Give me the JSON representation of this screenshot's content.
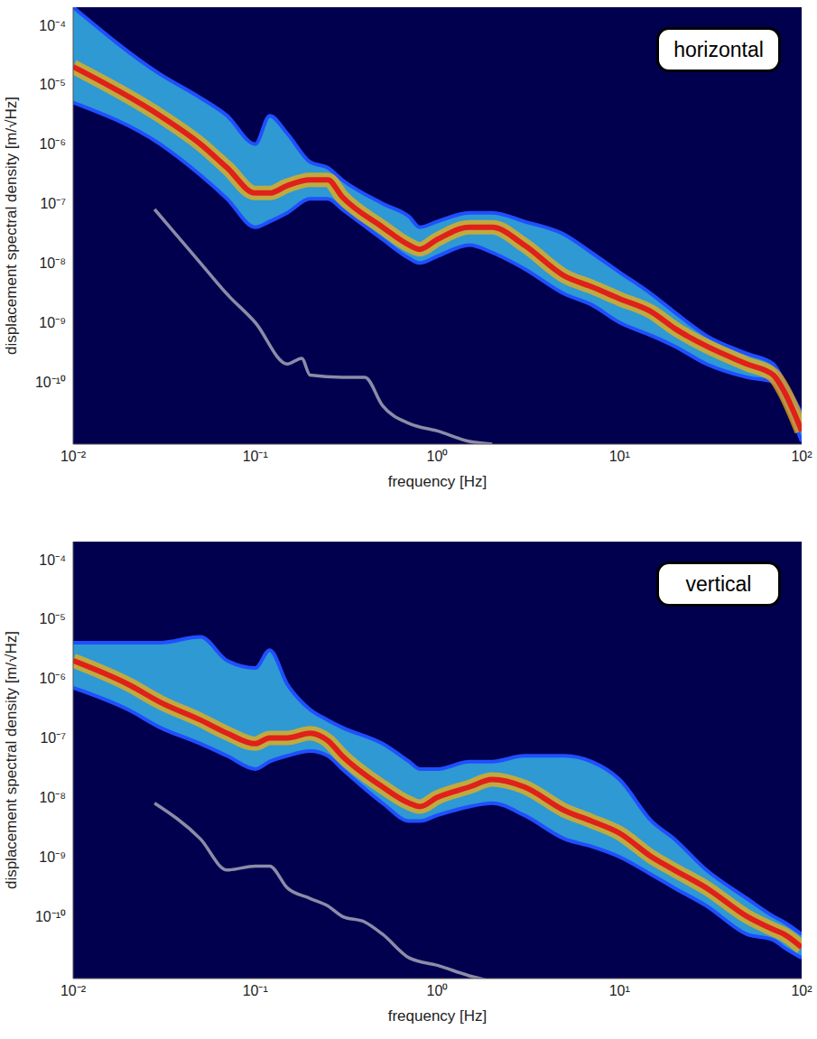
{
  "chart_data": [
    {
      "type": "line",
      "annotation": "horizontal",
      "x_label": "frequency [Hz]",
      "y_label": "displacement spectral density [m/√Hz]",
      "log": true,
      "grid": false,
      "xlim": [
        0.01,
        100
      ],
      "ylim": [
        9e-12,
        0.0002
      ],
      "xticks": [
        {
          "value": 0.01,
          "label": "10⁻²"
        },
        {
          "value": 0.1,
          "label": "10⁻¹"
        },
        {
          "value": 1,
          "label": "10⁰"
        },
        {
          "value": 10,
          "label": "10¹"
        },
        {
          "value": 100,
          "label": "10²"
        }
      ],
      "yticks": [
        {
          "value": 1e-10,
          "label": "10⁻¹⁰"
        },
        {
          "value": 1e-09,
          "label": "10⁻⁹"
        },
        {
          "value": 1e-08,
          "label": "10⁻⁸"
        },
        {
          "value": 1e-07,
          "label": "10⁻⁷"
        },
        {
          "value": 1e-06,
          "label": "10⁻⁶"
        },
        {
          "value": 1e-05,
          "label": "10⁻⁵"
        },
        {
          "value": 0.0001,
          "label": "10⁻⁴"
        }
      ],
      "x": [
        0.01,
        0.03,
        0.05,
        0.07,
        0.1,
        0.12,
        0.15,
        0.2,
        0.25,
        0.3,
        0.5,
        0.7,
        0.8,
        1,
        1.5,
        2,
        3,
        5,
        7,
        10,
        15,
        20,
        30,
        50,
        70,
        80,
        100
      ],
      "series": [
        {
          "type": "area",
          "color": "#36b4ea",
          "values": [
            [
              5e-06,
              0.0002
            ],
            [
              1e-06,
              1.5e-05
            ],
            [
              3e-07,
              6e-06
            ],
            [
              1.2e-07,
              3e-06
            ],
            [
              4e-08,
              1e-06
            ],
            [
              5e-08,
              3e-06
            ],
            [
              7e-08,
              1.5e-06
            ],
            [
              1.2e-07,
              5e-07
            ],
            [
              1.2e-07,
              4e-07
            ],
            [
              8e-08,
              2.5e-07
            ],
            [
              2.5e-08,
              1e-07
            ],
            [
              1.2e-08,
              6e-08
            ],
            [
              1e-08,
              4e-08
            ],
            [
              1.3e-08,
              5e-08
            ],
            [
              2e-08,
              7e-08
            ],
            [
              1.5e-08,
              7e-08
            ],
            [
              8e-09,
              5e-08
            ],
            [
              3e-09,
              3e-08
            ],
            [
              2e-09,
              1.5e-08
            ],
            [
              1e-09,
              7e-09
            ],
            [
              6e-10,
              3e-09
            ],
            [
              4e-10,
              1.5e-09
            ],
            [
              2e-10,
              6e-10
            ],
            [
              1.2e-10,
              3e-10
            ],
            [
              1e-10,
              2e-10
            ],
            [
              5e-11,
              1e-10
            ],
            [
              1e-11,
              3e-11
            ]
          ]
        },
        {
          "type": "line",
          "color": "#e0201a",
          "values": [
            2e-05,
            3e-06,
            1e-06,
            4e-07,
            1.5e-07,
            1.5e-07,
            2e-07,
            2.5e-07,
            2.5e-07,
            1.3e-07,
            4e-08,
            2e-08,
            1.7e-08,
            2.5e-08,
            4e-08,
            4e-08,
            2e-08,
            6e-09,
            4e-09,
            2.5e-09,
            1.5e-09,
            8e-10,
            4e-10,
            2e-10,
            1.3e-10,
            7e-11,
            1.5e-11
          ]
        },
        {
          "type": "line",
          "color": "#8c8ca8",
          "x": [
            0.028,
            0.05,
            0.07,
            0.1,
            0.15,
            0.18,
            0.2,
            0.3,
            0.4,
            0.5,
            0.7,
            1,
            1.5,
            2
          ],
          "values": [
            8e-08,
            1e-08,
            3e-09,
            1e-09,
            2e-10,
            2.5e-10,
            1.3e-10,
            1.2e-10,
            1.2e-10,
            4e-11,
            2e-11,
            1.5e-11,
            1e-11,
            9e-12
          ]
        }
      ]
    },
    {
      "type": "line",
      "annotation": "vertical",
      "x_label": "frequency [Hz]",
      "y_label": "displacement spectral density [m/√Hz]",
      "log": true,
      "grid": false,
      "xlim": [
        0.01,
        100
      ],
      "ylim": [
        9e-12,
        0.0002
      ],
      "xticks": [
        {
          "value": 0.01,
          "label": "10⁻²"
        },
        {
          "value": 0.1,
          "label": "10⁻¹"
        },
        {
          "value": 1,
          "label": "10⁰"
        },
        {
          "value": 10,
          "label": "10¹"
        },
        {
          "value": 100,
          "label": "10²"
        }
      ],
      "yticks": [
        {
          "value": 1e-10,
          "label": "10⁻¹⁰"
        },
        {
          "value": 1e-09,
          "label": "10⁻⁹"
        },
        {
          "value": 1e-08,
          "label": "10⁻⁸"
        },
        {
          "value": 1e-07,
          "label": "10⁻⁷"
        },
        {
          "value": 1e-06,
          "label": "10⁻⁶"
        },
        {
          "value": 1e-05,
          "label": "10⁻⁵"
        },
        {
          "value": 0.0001,
          "label": "10⁻⁴"
        }
      ],
      "x": [
        0.01,
        0.02,
        0.03,
        0.05,
        0.07,
        0.1,
        0.12,
        0.15,
        0.2,
        0.25,
        0.3,
        0.5,
        0.7,
        0.8,
        1,
        1.5,
        2,
        3,
        5,
        7,
        10,
        15,
        20,
        30,
        50,
        70,
        80,
        100
      ],
      "series": [
        {
          "type": "area",
          "color": "#36b4ea",
          "values": [
            [
              7e-07,
              4e-06
            ],
            [
              3e-07,
              4e-06
            ],
            [
              1.5e-07,
              4e-06
            ],
            [
              8e-08,
              5e-06
            ],
            [
              5e-08,
              2e-06
            ],
            [
              3e-08,
              1.5e-06
            ],
            [
              4e-08,
              3e-06
            ],
            [
              5e-08,
              8e-07
            ],
            [
              6e-08,
              3e-07
            ],
            [
              5e-08,
              2e-07
            ],
            [
              3e-08,
              1.5e-07
            ],
            [
              8e-09,
              8e-08
            ],
            [
              4e-09,
              4e-08
            ],
            [
              4e-09,
              3e-08
            ],
            [
              5e-09,
              3e-08
            ],
            [
              7e-09,
              4e-08
            ],
            [
              8e-09,
              4e-08
            ],
            [
              5e-09,
              5e-08
            ],
            [
              2e-09,
              5e-08
            ],
            [
              1.5e-09,
              4e-08
            ],
            [
              1e-09,
              2e-08
            ],
            [
              5e-10,
              4e-09
            ],
            [
              3e-10,
              2e-09
            ],
            [
              1.5e-10,
              6e-10
            ],
            [
              5e-11,
              2e-10
            ],
            [
              4e-11,
              1e-10
            ],
            [
              3e-11,
              8e-11
            ],
            [
              2e-11,
              5e-11
            ]
          ]
        },
        {
          "type": "line",
          "color": "#e0201a",
          "values": [
            2e-06,
            8e-07,
            4e-07,
            2e-07,
            1.2e-07,
            8e-08,
            1e-07,
            1e-07,
            1.2e-07,
            9e-08,
            5e-08,
            1.5e-08,
            8e-09,
            7e-09,
            1e-08,
            1.5e-08,
            2e-08,
            1.5e-08,
            6e-09,
            4e-09,
            2.5e-09,
            1e-09,
            6e-10,
            3e-10,
            1e-10,
            6e-11,
            5e-11,
            3e-11
          ]
        },
        {
          "type": "line",
          "color": "#8c8ca8",
          "x": [
            0.028,
            0.05,
            0.07,
            0.1,
            0.12,
            0.15,
            0.2,
            0.25,
            0.3,
            0.4,
            0.5,
            0.7,
            1,
            1.5,
            2
          ],
          "values": [
            8e-09,
            2e-09,
            6e-10,
            7e-10,
            7e-10,
            3e-10,
            2e-10,
            1.5e-10,
            1e-10,
            8e-11,
            5e-11,
            2e-11,
            1.5e-11,
            1e-11,
            8e-12
          ]
        }
      ]
    }
  ]
}
